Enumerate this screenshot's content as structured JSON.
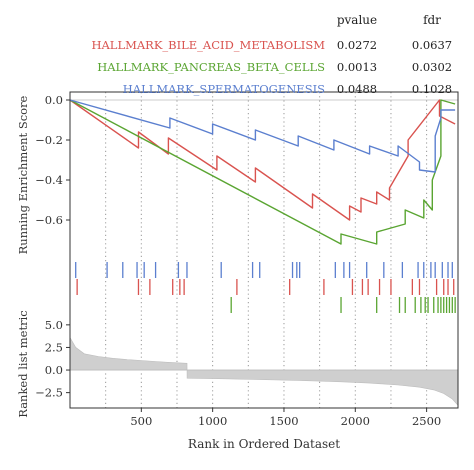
{
  "chart_data": {
    "type": "line",
    "xlabel": "Rank in Ordered Dataset",
    "panels": {
      "enrichment": {
        "ylabel": "Running Enrichment Score",
        "xlim": [
          0,
          2720
        ],
        "ylim": [
          -0.76,
          0.04
        ],
        "y_ticks": [
          0.0,
          -0.2,
          -0.4,
          -0.6
        ],
        "y_tick_labels": [
          "0.0",
          "−0.2",
          "−0.4",
          "−0.6"
        ],
        "vgrid_x": [
          250,
          500,
          750,
          1000,
          1250,
          1500,
          1750,
          2000,
          2250,
          2500
        ],
        "grid": "vertical dotted"
      },
      "ranked_metric": {
        "ylabel": "Ranked list metric",
        "ylim": [
          -4.2,
          6.2
        ],
        "y_ticks": [
          5.0,
          2.5,
          0.0,
          -2.5
        ],
        "y_tick_labels": [
          "5.0",
          "2.5",
          "0.0",
          "−2.5"
        ],
        "x_ticks": [
          500,
          1000,
          1500,
          2000,
          2500
        ],
        "x_tick_labels": [
          "500",
          "1000",
          "1500",
          "2000",
          "2500"
        ]
      }
    },
    "legend": {
      "placement": "top",
      "columns": [
        "pvalue",
        "fdr"
      ]
    },
    "series": [
      {
        "name": "HALLMARK_BILE_ACID_METABOLISM",
        "color": "#d9534f",
        "pvalue": "0.0272",
        "fdr": "0.0637",
        "x": [
          0,
          480,
          480,
          690,
          690,
          1030,
          1030,
          1300,
          1300,
          1700,
          1700,
          1960,
          1960,
          2040,
          2040,
          2150,
          2150,
          2240,
          2240,
          2370,
          2370,
          2590,
          2590,
          2700
        ],
        "y": [
          0.0,
          -0.24,
          -0.16,
          -0.27,
          -0.19,
          -0.35,
          -0.28,
          -0.41,
          -0.34,
          -0.54,
          -0.47,
          -0.6,
          -0.53,
          -0.56,
          -0.49,
          -0.52,
          -0.46,
          -0.5,
          -0.44,
          -0.28,
          -0.2,
          0.0,
          -0.08,
          -0.12
        ]
      },
      {
        "name": "HALLMARK_PANCREAS_BETA_CELLS",
        "color": "#5aa532",
        "pvalue": "0.0013",
        "fdr": "0.0302",
        "x": [
          0,
          1900,
          1900,
          2150,
          2150,
          2350,
          2350,
          2480,
          2480,
          2540,
          2540,
          2600,
          2600,
          2700
        ],
        "y": [
          0.0,
          -0.72,
          -0.67,
          -0.72,
          -0.66,
          -0.62,
          -0.55,
          -0.59,
          -0.5,
          -0.55,
          -0.4,
          -0.28,
          0.0,
          -0.02
        ]
      },
      {
        "name": "HALLMARK_SPERMATOGENESIS",
        "color": "#5b7fcf",
        "pvalue": "0.0488",
        "fdr": "0.1028",
        "x": [
          0,
          700,
          700,
          1000,
          1000,
          1300,
          1300,
          1600,
          1600,
          1850,
          1850,
          2100,
          2100,
          2300,
          2300,
          2450,
          2450,
          2560,
          2560,
          2600,
          2600,
          2700
        ],
        "y": [
          0.0,
          -0.14,
          -0.09,
          -0.17,
          -0.12,
          -0.2,
          -0.15,
          -0.23,
          -0.18,
          -0.25,
          -0.2,
          -0.27,
          -0.23,
          -0.28,
          -0.23,
          -0.31,
          -0.35,
          -0.36,
          -0.18,
          -0.09,
          -0.05,
          -0.05
        ]
      }
    ],
    "hits": {
      "HALLMARK_SPERMATOGENESIS": [
        40,
        260,
        370,
        470,
        520,
        600,
        760,
        820,
        1060,
        1280,
        1330,
        1560,
        1590,
        1610,
        1860,
        1920,
        1960,
        2080,
        2200,
        2330,
        2440,
        2480,
        2530,
        2560,
        2610,
        2650,
        2680
      ],
      "HALLMARK_BILE_ACID_METABOLISM": [
        50,
        480,
        560,
        720,
        770,
        800,
        1170,
        1540,
        1780,
        1980,
        2050,
        2090,
        2170,
        2250,
        2400,
        2450,
        2570,
        2620,
        2650,
        2690
      ],
      "HALLMARK_PANCREAS_BETA_CELLS": [
        1130,
        1900,
        2150,
        2310,
        2350,
        2420,
        2460,
        2490,
        2510,
        2550,
        2580,
        2600,
        2620,
        2640,
        2660,
        2680,
        2700
      ]
    },
    "ranked_list": {
      "x": [
        0,
        40,
        100,
        200,
        300,
        400,
        500,
        600,
        700,
        820,
        821,
        1000,
        1300,
        1600,
        1900,
        2100,
        2300,
        2450,
        2550,
        2620,
        2680,
        2720
      ],
      "y": [
        3.6,
        2.5,
        1.8,
        1.5,
        1.3,
        1.15,
        1.05,
        0.95,
        0.85,
        0.75,
        -0.9,
        -0.95,
        -1.05,
        -1.15,
        -1.3,
        -1.45,
        -1.65,
        -1.9,
        -2.2,
        -2.6,
        -3.2,
        -3.9
      ]
    }
  }
}
